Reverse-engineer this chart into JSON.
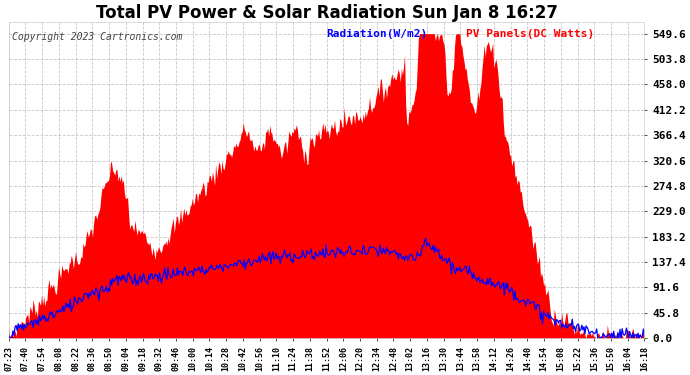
{
  "title": "Total PV Power & Solar Radiation Sun Jan 8 16:27",
  "copyright": "Copyright 2023 Cartronics.com",
  "legend_radiation": "Radiation(W/m2)",
  "legend_pv": "PV Panels(DC Watts)",
  "yticks": [
    0.0,
    45.8,
    91.6,
    137.4,
    183.2,
    229.0,
    274.8,
    320.6,
    366.4,
    412.2,
    458.0,
    503.8,
    549.6
  ],
  "ymax": 570,
  "ymin": 0,
  "background_color": "#ffffff",
  "grid_color": "#bbbbbb",
  "pv_color": "#ff0000",
  "radiation_color": "#0000ff",
  "title_color": "#000000",
  "copyright_color": "#444444",
  "xtick_labels": [
    "07:23",
    "07:40",
    "07:54",
    "08:08",
    "08:22",
    "08:36",
    "08:50",
    "09:04",
    "09:18",
    "09:32",
    "09:46",
    "10:00",
    "10:14",
    "10:28",
    "10:42",
    "10:56",
    "11:10",
    "11:24",
    "11:38",
    "11:52",
    "12:06",
    "12:20",
    "12:34",
    "12:48",
    "13:02",
    "13:16",
    "13:30",
    "13:44",
    "13:58",
    "14:12",
    "14:26",
    "14:40",
    "14:54",
    "15:08",
    "15:22",
    "15:36",
    "15:50",
    "16:04",
    "16:18"
  ],
  "title_fontsize": 12,
  "ytick_fontsize": 8,
  "xtick_fontsize": 6,
  "copyright_fontsize": 7,
  "legend_fontsize": 8
}
